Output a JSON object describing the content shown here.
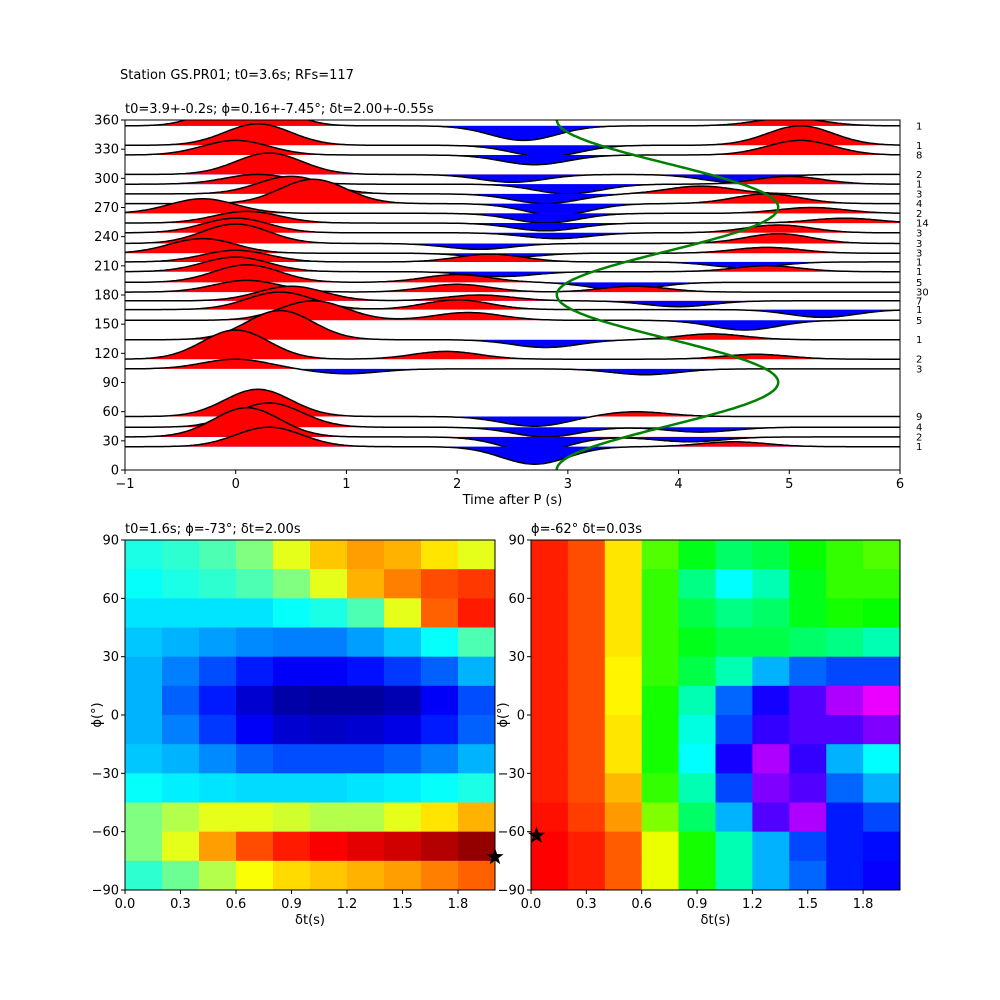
{
  "suptitle": "Station GS.PR01; t0=3.6s; RFs=117",
  "chart_data": [
    {
      "type": "traces",
      "title": "t0=3.9+-0.2s; ϕ=0.16+-7.45°; δt=2.00+-0.55s",
      "xlabel": "Time after P (s)",
      "xlim": [
        -1,
        6
      ],
      "xticks": [
        {
          "value": -1,
          "label": "−1"
        },
        0,
        1,
        2,
        3,
        4,
        5,
        6
      ],
      "ylim": [
        0,
        360
      ],
      "yticks": [
        0,
        30,
        60,
        90,
        120,
        150,
        180,
        210,
        240,
        270,
        300,
        330,
        360
      ],
      "pos_color": "#ff0000",
      "neg_color": "#0000ff",
      "model_color": "#008000",
      "model": {
        "t0": 3.9,
        "phi": 0.16,
        "dt": 2.0
      },
      "traces": [
        {
          "baz": 354,
          "count": 1,
          "pulses": [
            [
              0.1,
              35
            ],
            [
              2.6,
              -15
            ],
            [
              5.0,
              8
            ]
          ]
        },
        {
          "baz": 334,
          "count": 1,
          "pulses": [
            [
              0.2,
              22
            ],
            [
              2.8,
              -12
            ],
            [
              5.1,
              20
            ]
          ]
        },
        {
          "baz": 324,
          "count": 8,
          "pulses": [
            [
              0.0,
              15
            ],
            [
              2.7,
              -10
            ],
            [
              5.1,
              15
            ]
          ]
        },
        {
          "baz": 304,
          "count": 2,
          "pulses": [
            [
              0.3,
              22
            ],
            [
              2.5,
              -8
            ],
            [
              4.5,
              -8
            ]
          ]
        },
        {
          "baz": 294,
          "count": 1,
          "pulses": [
            [
              0.2,
              10
            ],
            [
              3.0,
              -10
            ],
            [
              5.0,
              8
            ]
          ]
        },
        {
          "baz": 284,
          "count": 3,
          "pulses": [
            [
              0.5,
              18
            ],
            [
              2.8,
              -10
            ],
            [
              4.2,
              8
            ]
          ]
        },
        {
          "baz": 274,
          "count": 4,
          "pulses": [
            [
              0.7,
              25
            ],
            [
              2.9,
              -12
            ],
            [
              4.8,
              10
            ]
          ]
        },
        {
          "baz": 264,
          "count": 2,
          "pulses": [
            [
              -0.3,
              15
            ],
            [
              2.8,
              -10
            ],
            [
              5.2,
              6
            ]
          ]
        },
        {
          "baz": 254,
          "count": 14,
          "pulses": [
            [
              0.1,
              12
            ],
            [
              2.8,
              -8
            ],
            [
              5.5,
              5
            ]
          ]
        },
        {
          "baz": 244,
          "count": 3,
          "pulses": [
            [
              0.0,
              15
            ],
            [
              2.9,
              -6
            ],
            [
              4.9,
              8
            ]
          ]
        },
        {
          "baz": 233,
          "count": 3,
          "pulses": [
            [
              0.0,
              20
            ],
            [
              2.2,
              -6
            ],
            [
              4.9,
              10
            ]
          ]
        },
        {
          "baz": 223,
          "count": 3,
          "pulses": [
            [
              -0.3,
              15
            ],
            [
              2.4,
              -5
            ],
            [
              4.8,
              6
            ]
          ]
        },
        {
          "baz": 214,
          "count": 1,
          "pulses": [
            [
              0.0,
              12
            ],
            [
              2.3,
              8
            ],
            [
              4.6,
              -6
            ]
          ]
        },
        {
          "baz": 204,
          "count": 1,
          "pulses": [
            [
              0.0,
              15
            ],
            [
              2.4,
              -5
            ],
            [
              4.8,
              6
            ]
          ]
        },
        {
          "baz": 193,
          "count": 5,
          "pulses": [
            [
              0.1,
              18
            ],
            [
              2.0,
              8
            ],
            [
              3.5,
              -8
            ]
          ]
        },
        {
          "baz": 183,
          "count": 30,
          "pulses": [
            [
              0.1,
              12
            ],
            [
              2.0,
              8
            ],
            [
              3.6,
              6
            ]
          ]
        },
        {
          "baz": 174,
          "count": 7,
          "pulses": [
            [
              0.5,
              15
            ],
            [
              2.2,
              6
            ],
            [
              4.0,
              -6
            ]
          ]
        },
        {
          "baz": 165,
          "count": 1,
          "pulses": [
            [
              0.4,
              18
            ],
            [
              2.0,
              10
            ],
            [
              5.3,
              -8
            ]
          ]
        },
        {
          "baz": 154,
          "count": 5,
          "pulses": [
            [
              0.7,
              20
            ],
            [
              2.1,
              8
            ],
            [
              4.6,
              -10
            ]
          ]
        },
        {
          "baz": 134,
          "count": 1,
          "pulses": [
            [
              0.4,
              30
            ],
            [
              2.8,
              -8
            ],
            [
              4.3,
              6
            ]
          ]
        },
        {
          "baz": 114,
          "count": 2,
          "pulses": [
            [
              0.0,
              30
            ],
            [
              1.9,
              8
            ],
            [
              4.7,
              5
            ]
          ]
        },
        {
          "baz": 104,
          "count": 3,
          "pulses": [
            [
              0.0,
              10
            ],
            [
              1.0,
              -5
            ],
            [
              3.7,
              -6
            ]
          ]
        },
        {
          "baz": 55,
          "count": 9,
          "pulses": [
            [
              0.2,
              28
            ],
            [
              2.7,
              -10
            ],
            [
              3.6,
              5
            ]
          ]
        },
        {
          "baz": 44,
          "count": 4,
          "pulses": [
            [
              0.3,
              25
            ],
            [
              2.8,
              -10
            ],
            [
              4.2,
              -5
            ]
          ]
        },
        {
          "baz": 34,
          "count": 2,
          "pulses": [
            [
              0.1,
              30
            ],
            [
              2.7,
              -15
            ],
            [
              4.1,
              -5
            ]
          ]
        },
        {
          "baz": 24,
          "count": 1,
          "pulses": [
            [
              0.3,
              20
            ],
            [
              2.7,
              -18
            ],
            [
              4.5,
              5
            ]
          ]
        }
      ]
    },
    {
      "type": "heatmap",
      "title": "t0=1.6s; ϕ=-73°; δt=2.00s",
      "xlabel": "δt(s)",
      "ylabel": "ϕ(°)",
      "colormap": "jet",
      "xlim": [
        0,
        2
      ],
      "xticks": [
        {
          "value": 0,
          "label": "0.0"
        },
        0.3,
        0.6,
        0.9,
        1.2,
        1.5,
        1.8
      ],
      "ylim": [
        -90,
        90
      ],
      "yticks": [
        {
          "value": -90,
          "label": "−90"
        },
        {
          "value": -60,
          "label": "−60"
        },
        {
          "value": -30,
          "label": "−30"
        },
        0,
        30,
        60,
        90
      ],
      "best": {
        "dt": 2.0,
        "phi": -73
      },
      "values": [
        [
          0.4,
          0.42,
          0.45,
          0.5,
          0.6,
          0.68,
          0.72,
          0.7,
          0.65,
          0.6
        ],
        [
          0.38,
          0.4,
          0.42,
          0.45,
          0.5,
          0.6,
          0.7,
          0.75,
          0.8,
          0.82
        ],
        [
          0.35,
          0.35,
          0.35,
          0.35,
          0.38,
          0.4,
          0.45,
          0.6,
          0.78,
          0.85
        ],
        [
          0.32,
          0.3,
          0.28,
          0.26,
          0.25,
          0.25,
          0.28,
          0.32,
          0.38,
          0.45
        ],
        [
          0.3,
          0.25,
          0.2,
          0.15,
          0.12,
          0.12,
          0.14,
          0.18,
          0.22,
          0.3
        ],
        [
          0.3,
          0.22,
          0.15,
          0.08,
          0.04,
          0.03,
          0.03,
          0.05,
          0.12,
          0.2
        ],
        [
          0.3,
          0.25,
          0.18,
          0.12,
          0.08,
          0.07,
          0.08,
          0.1,
          0.15,
          0.22
        ],
        [
          0.32,
          0.3,
          0.26,
          0.22,
          0.2,
          0.2,
          0.2,
          0.22,
          0.25,
          0.3
        ],
        [
          0.38,
          0.36,
          0.35,
          0.34,
          0.34,
          0.34,
          0.35,
          0.36,
          0.38,
          0.4
        ],
        [
          0.5,
          0.55,
          0.6,
          0.6,
          0.58,
          0.55,
          0.55,
          0.6,
          0.65,
          0.7
        ],
        [
          0.5,
          0.6,
          0.72,
          0.8,
          0.85,
          0.88,
          0.9,
          0.92,
          0.95,
          0.98
        ],
        [
          0.42,
          0.48,
          0.55,
          0.62,
          0.66,
          0.68,
          0.7,
          0.72,
          0.75,
          0.78
        ]
      ]
    },
    {
      "type": "heatmap",
      "title": "ϕ=-62° δt=0.03s",
      "xlabel": "δt(s)",
      "ylabel": "ϕ(°)",
      "colormap": "hsv",
      "xlim": [
        0,
        2
      ],
      "xticks": [
        {
          "value": 0,
          "label": "0.0"
        },
        0.3,
        0.6,
        0.9,
        1.2,
        1.5,
        1.8
      ],
      "ylim": [
        -90,
        90
      ],
      "yticks": [
        {
          "value": -90,
          "label": "−90"
        },
        {
          "value": -60,
          "label": "−60"
        },
        {
          "value": -30,
          "label": "−30"
        },
        0,
        30,
        60,
        90
      ],
      "best": {
        "dt": 0.03,
        "phi": -62
      },
      "values": [
        [
          0.02,
          0.05,
          0.15,
          0.28,
          0.35,
          0.4,
          0.38,
          0.33,
          0.3,
          0.28
        ],
        [
          0.02,
          0.05,
          0.15,
          0.3,
          0.42,
          0.5,
          0.45,
          0.35,
          0.3,
          0.3
        ],
        [
          0.02,
          0.05,
          0.15,
          0.3,
          0.38,
          0.42,
          0.4,
          0.35,
          0.32,
          0.33
        ],
        [
          0.02,
          0.05,
          0.15,
          0.3,
          0.35,
          0.38,
          0.38,
          0.4,
          0.42,
          0.45
        ],
        [
          0.02,
          0.05,
          0.16,
          0.3,
          0.38,
          0.45,
          0.55,
          0.6,
          0.62,
          0.62
        ],
        [
          0.02,
          0.05,
          0.16,
          0.32,
          0.45,
          0.6,
          0.68,
          0.72,
          0.78,
          0.82
        ],
        [
          0.02,
          0.05,
          0.15,
          0.32,
          0.48,
          0.62,
          0.7,
          0.72,
          0.72,
          0.75
        ],
        [
          0.02,
          0.05,
          0.15,
          0.32,
          0.5,
          0.68,
          0.78,
          0.7,
          0.55,
          0.5
        ],
        [
          0.02,
          0.05,
          0.12,
          0.3,
          0.45,
          0.62,
          0.75,
          0.72,
          0.6,
          0.55
        ],
        [
          0.01,
          0.04,
          0.1,
          0.25,
          0.4,
          0.55,
          0.72,
          0.78,
          0.65,
          0.62
        ],
        [
          0.0,
          0.02,
          0.06,
          0.18,
          0.32,
          0.45,
          0.55,
          0.62,
          0.65,
          0.66
        ],
        [
          0.0,
          0.02,
          0.06,
          0.18,
          0.32,
          0.45,
          0.55,
          0.6,
          0.65,
          0.67
        ]
      ]
    }
  ]
}
